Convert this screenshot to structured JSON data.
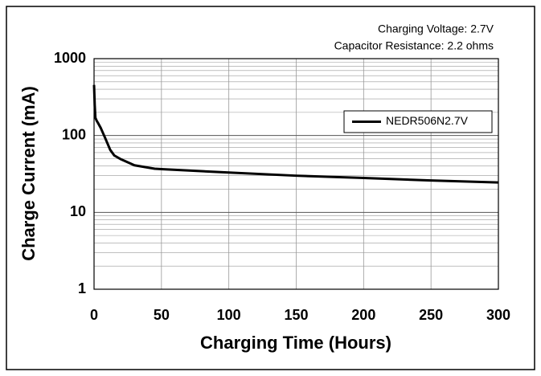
{
  "chart_data": {
    "type": "line",
    "xlabel": "Charging Time (Hours)",
    "ylabel": "Charge Current (mA)",
    "annotations": [
      "Charging Voltage: 2.7V",
      "Capacitor Resistance: 2.2 ohms"
    ],
    "x": [
      0,
      0.5,
      1,
      2,
      3,
      5,
      8,
      12,
      15,
      20,
      30,
      45,
      50,
      100,
      150,
      200,
      250,
      300
    ],
    "series": [
      {
        "name": "NEDR506N2.7V",
        "color": "#000000",
        "values": [
          455,
          250,
          170,
          155,
          145,
          125,
          95,
          65,
          55,
          49,
          41,
          37,
          36.5,
          33,
          30,
          28,
          26,
          24.5
        ]
      }
    ],
    "xlim": [
      0,
      300
    ],
    "xticks": [
      0,
      50,
      100,
      150,
      200,
      250,
      300
    ],
    "ylim": [
      1,
      1000
    ],
    "yticks": [
      1,
      10,
      100,
      1000
    ],
    "ylog": true,
    "grid": true,
    "minor_grid": true,
    "legend": "upper right"
  }
}
